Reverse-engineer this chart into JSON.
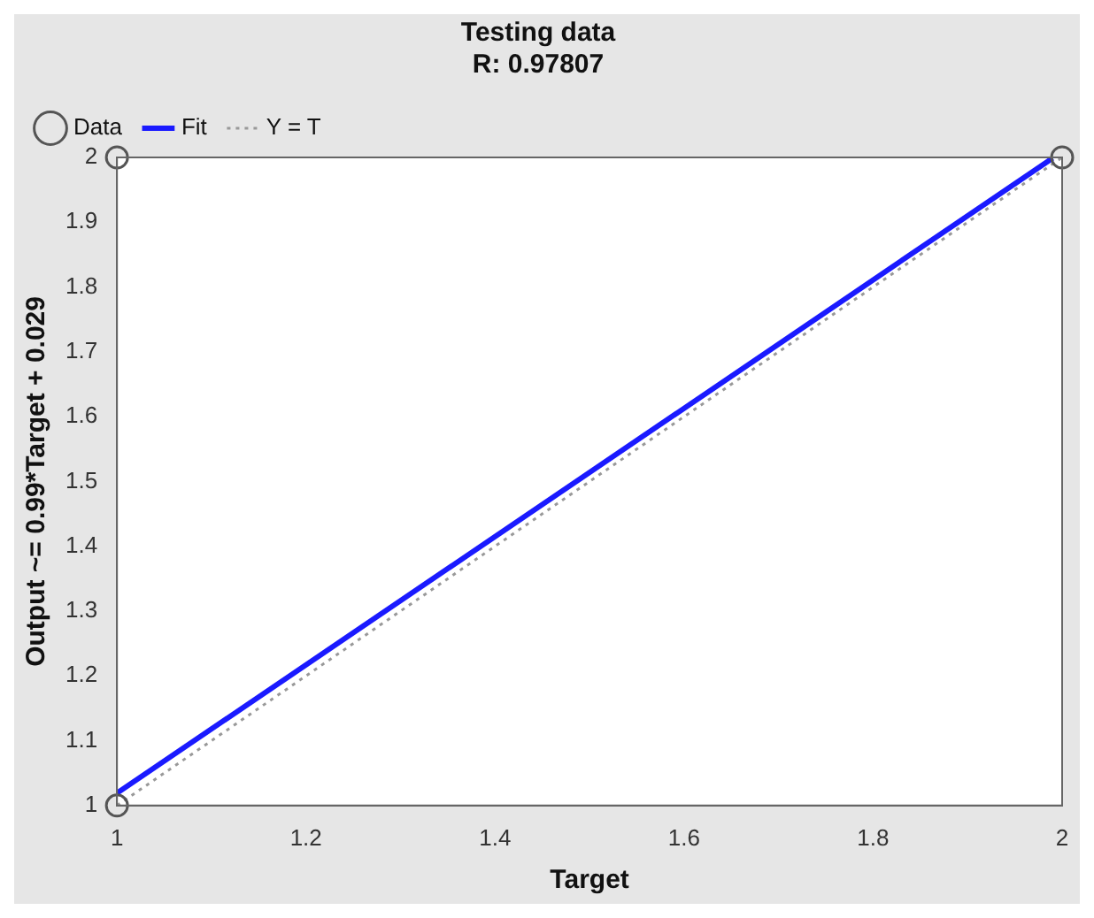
{
  "chart_data": {
    "type": "scatter",
    "title": "Testing data",
    "subtitle": "R: 0.97807",
    "xlabel": "Target",
    "ylabel": "Output ~= 0.99*Target + 0.029",
    "xlim": [
      1,
      2
    ],
    "xticks": [
      1,
      1.2,
      1.4,
      1.6,
      1.8,
      2
    ],
    "ylim": [
      1,
      2
    ],
    "yticks": [
      1,
      1.1,
      1.2,
      1.3,
      1.4,
      1.5,
      1.6,
      1.7,
      1.8,
      1.9,
      2
    ],
    "grid": false,
    "legend": "top left",
    "series": [
      {
        "name": "Data",
        "type": "scatter",
        "color": "#555555",
        "marker": "circle",
        "x": [
          1,
          1,
          2
        ],
        "values": [
          1,
          2,
          2
        ]
      },
      {
        "name": "Fit",
        "type": "line",
        "color": "#1a1aff",
        "marker": "none",
        "line_style": "solid",
        "x": [
          1,
          1.99
        ],
        "values": [
          1.019,
          1.999
        ]
      },
      {
        "name": "Y = T",
        "type": "line",
        "color": "#999999",
        "marker": "none",
        "line_style": "dotted",
        "x": [
          1,
          2
        ],
        "values": [
          1,
          2
        ]
      }
    ]
  }
}
